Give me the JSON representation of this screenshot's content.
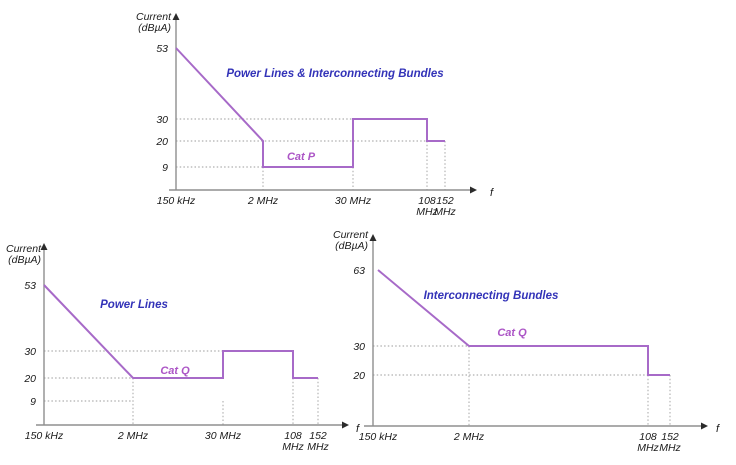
{
  "figure": {
    "background": "#ffffff",
    "description_labels": {
      "f_axis_symbol": "f"
    }
  },
  "colors": {
    "trace": "#A76AC8",
    "title_text": "#3333B8",
    "cat_text": "#AC55C6",
    "axis": "#8F8F8F",
    "arrow": "#2B2B2B",
    "guide": "#9B9B9B",
    "text": "#1A1A1A"
  },
  "chart_data": [
    {
      "type": "line",
      "title": "Power Lines & Interconnecting Bundles",
      "category_label": "Cat P",
      "ylabel": "Current (dBµA)",
      "ylabel_lines": [
        "Current",
        "(dBµA)"
      ],
      "xlabel": "f",
      "x_ticks": [
        "150 kHz",
        "2 MHz",
        "30 MHz",
        "108 MHz",
        "152 MHz"
      ],
      "y_ticks": [
        53,
        30,
        20,
        9
      ],
      "grid": "dotted guides only",
      "legend": "none",
      "points": [
        {
          "f": "150 kHz",
          "dB": 53
        },
        {
          "f": "2 MHz",
          "dB": 20
        },
        {
          "f": "2 MHz",
          "dB": 9
        },
        {
          "f": "30 MHz",
          "dB": 9
        },
        {
          "f": "30 MHz",
          "dB": 30
        },
        {
          "f": "108 MHz",
          "dB": 30
        },
        {
          "f": "108 MHz",
          "dB": 20
        },
        {
          "f": "152 MHz",
          "dB": 20
        }
      ],
      "h_guides": [
        {
          "dB": 30,
          "to": "30 MHz"
        },
        {
          "dB": 20,
          "to": "152 MHz"
        },
        {
          "dB": 9,
          "to": "2 MHz"
        }
      ],
      "v_guides": [
        {
          "f": "2 MHz",
          "from_dB": 20
        },
        {
          "f": "30 MHz",
          "from_dB": 9
        },
        {
          "f": "108 MHz",
          "from_dB": 20
        },
        {
          "f": "152 MHz",
          "from_dB": 20
        }
      ]
    },
    {
      "type": "line",
      "title": "Power Lines",
      "category_label": "Cat Q",
      "ylabel": "Current (dBµA)",
      "ylabel_lines": [
        "Current",
        "(dBµA)"
      ],
      "xlabel": "f",
      "x_ticks": [
        "150 kHz",
        "2 MHz",
        "30 MHz",
        "108 MHz",
        "152 MHz"
      ],
      "y_ticks": [
        53,
        30,
        20,
        9
      ],
      "grid": "dotted guides only",
      "legend": "none",
      "points": [
        {
          "f": "150 kHz",
          "dB": 53
        },
        {
          "f": "2 MHz",
          "dB": 20
        },
        {
          "f": "30 MHz",
          "dB": 20
        },
        {
          "f": "30 MHz",
          "dB": 30
        },
        {
          "f": "108 MHz",
          "dB": 30
        },
        {
          "f": "108 MHz",
          "dB": 20
        },
        {
          "f": "152 MHz",
          "dB": 20
        }
      ],
      "h_guides": [
        {
          "dB": 30,
          "to": "30 MHz"
        },
        {
          "dB": 20,
          "to": "2 MHz"
        },
        {
          "dB": 9,
          "to": "2 MHz"
        }
      ],
      "v_guides": [
        {
          "f": "2 MHz",
          "from_dB": 20
        },
        {
          "f": "30 MHz",
          "from_dB": 9
        },
        {
          "f": "108 MHz",
          "from_dB": 20
        },
        {
          "f": "152 MHz",
          "from_dB": 20
        }
      ]
    },
    {
      "type": "line",
      "title": "Interconnecting Bundles",
      "category_label": "Cat Q",
      "ylabel": "Current (dBµA)",
      "ylabel_lines": [
        "Current",
        "(dBµA)"
      ],
      "xlabel": "f",
      "x_ticks": [
        "150 kHz",
        "2 MHz",
        "108 MHz",
        "152 MHz"
      ],
      "y_ticks": [
        63,
        30,
        20
      ],
      "grid": "dotted guides only",
      "legend": "none",
      "points": [
        {
          "f": "150 kHz",
          "dB": 63
        },
        {
          "f": "2 MHz",
          "dB": 30
        },
        {
          "f": "108 MHz",
          "dB": 30
        },
        {
          "f": "108 MHz",
          "dB": 20
        },
        {
          "f": "152 MHz",
          "dB": 20
        }
      ],
      "h_guides": [
        {
          "dB": 30,
          "to": "2 MHz"
        },
        {
          "dB": 20,
          "to": "108 MHz"
        }
      ],
      "v_guides": [
        {
          "f": "2 MHz",
          "from_dB": 30
        },
        {
          "f": "108 MHz",
          "from_dB": 20
        },
        {
          "f": "152 MHz",
          "from_dB": 20
        }
      ]
    }
  ]
}
